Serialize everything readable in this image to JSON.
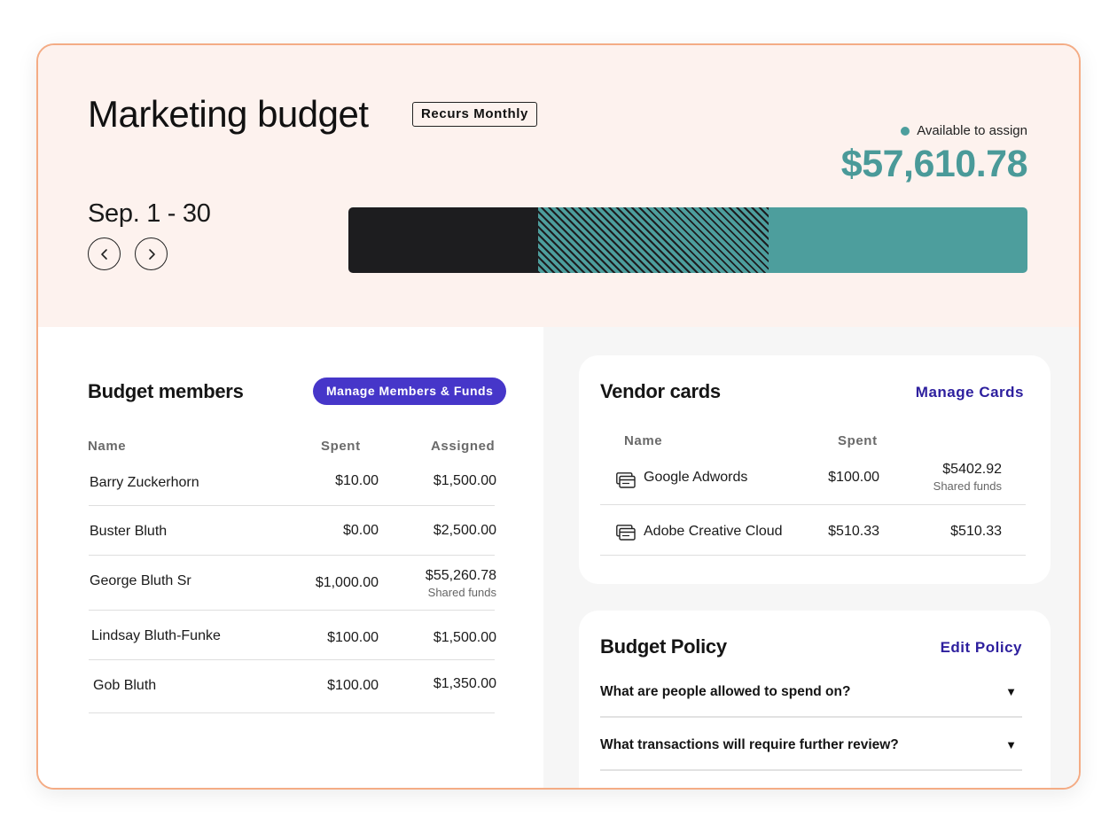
{
  "header": {
    "title": "Marketing budget",
    "recurrence_badge": "Recurs Monthly",
    "available_label": "Available to assign",
    "available_amount": "$57,610.78",
    "date_range": "Sep. 1 - 30",
    "prev_icon": "chevron-left-icon",
    "next_icon": "chevron-right-icon"
  },
  "budget_bar": {
    "spent_fraction": 0.28,
    "shared_fraction": 0.34,
    "available_fraction": 0.38,
    "colors": {
      "spent": "#1d1d1f",
      "available": "#4d9e9d"
    }
  },
  "members": {
    "title": "Budget members",
    "manage_button": "Manage Members & Funds",
    "columns": {
      "name": "Name",
      "spent": "Spent",
      "assigned": "Assigned"
    },
    "rows": [
      {
        "name": "Barry Zuckerhorn",
        "spent": "$10.00",
        "assigned": "$1,500.00",
        "note": ""
      },
      {
        "name": "Buster Bluth",
        "spent": "$0.00",
        "assigned": "$2,500.00",
        "note": ""
      },
      {
        "name": "George Bluth Sr",
        "spent": "$1,000.00",
        "assigned": "$55,260.78",
        "note": "Shared funds"
      },
      {
        "name": "Lindsay Bluth-Funke",
        "spent": "$100.00",
        "assigned": "$1,500.00",
        "note": ""
      },
      {
        "name": "Gob Bluth",
        "spent": "$100.00",
        "assigned": "$1,350.00",
        "note": ""
      }
    ]
  },
  "vendor_cards": {
    "title": "Vendor cards",
    "manage_link": "Manage Cards",
    "columns": {
      "name": "Name",
      "spent": "Spent"
    },
    "rows": [
      {
        "name": "Google Adwords",
        "spent": "$100.00",
        "assigned": "$5402.92",
        "note": "Shared funds",
        "icon": "card-icon"
      },
      {
        "name": "Adobe Creative Cloud",
        "spent": "$510.33",
        "assigned": "$510.33",
        "note": "",
        "icon": "card-icon"
      }
    ]
  },
  "policy": {
    "title": "Budget Policy",
    "edit_link": "Edit Policy",
    "questions": [
      {
        "text": "What are people allowed to spend on?",
        "icon": "caret-down-icon"
      },
      {
        "text": "What transactions will require further review?",
        "icon": "caret-down-icon"
      }
    ]
  }
}
